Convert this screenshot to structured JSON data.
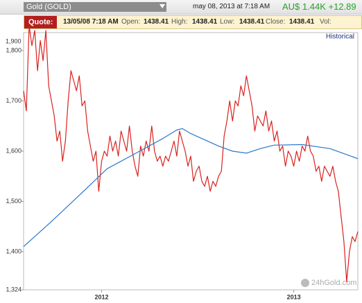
{
  "header": {
    "symbol": "Gold (GOLD)",
    "date": "may 08, 2013 at 7:18 AM",
    "price": "AU$ 1.44K +12.89"
  },
  "quote": {
    "label": "Quote:",
    "time": "13/05/08 7:18 AM",
    "fields": [
      {
        "key": "Open:",
        "value": "1438.41"
      },
      {
        "key": "High:",
        "value": "1438.41"
      },
      {
        "key": "Low:",
        "value": "1438.41"
      },
      {
        "key": "Close:",
        "value": "1438.41"
      },
      {
        "key": "Vol:",
        "value": ""
      }
    ]
  },
  "chart_data": {
    "type": "line",
    "link": "Historical",
    "watermark": "24hGold.com",
    "y_top_label": "1,900",
    "xlim": [
      0,
      120
    ],
    "xticks": [
      {
        "value": 28,
        "label": "2012"
      },
      {
        "value": 97,
        "label": "2013"
      }
    ],
    "ylim": [
      1324,
      1829
    ],
    "yticks": [
      {
        "value": 1324,
        "label": "1,324"
      },
      {
        "value": 1400,
        "label": "1,400"
      },
      {
        "value": 1500,
        "label": "1,500"
      },
      {
        "value": 1600,
        "label": "1,600"
      },
      {
        "value": 1700,
        "label": "1,700"
      },
      {
        "value": 1800,
        "label": "1,800"
      }
    ],
    "series": [
      {
        "color": "#d9211e",
        "values": [
          1720,
          1680,
          1850,
          1810,
          1840,
          1760,
          1820,
          1780,
          1840,
          1730,
          1700,
          1670,
          1620,
          1640,
          1580,
          1620,
          1700,
          1760,
          1740,
          1720,
          1750,
          1690,
          1700,
          1640,
          1610,
          1580,
          1600,
          1520,
          1580,
          1600,
          1590,
          1630,
          1600,
          1620,
          1590,
          1640,
          1620,
          1600,
          1650,
          1600,
          1570,
          1550,
          1610,
          1590,
          1620,
          1600,
          1650,
          1600,
          1580,
          1590,
          1570,
          1590,
          1580,
          1600,
          1620,
          1590,
          1640,
          1620,
          1600,
          1570,
          1590,
          1540,
          1560,
          1570,
          1540,
          1530,
          1550,
          1520,
          1540,
          1530,
          1550,
          1560,
          1630,
          1660,
          1700,
          1660,
          1700,
          1690,
          1730,
          1710,
          1750,
          1720,
          1690,
          1640,
          1670,
          1660,
          1650,
          1680,
          1640,
          1660,
          1620,
          1640,
          1600,
          1610,
          1570,
          1600,
          1590,
          1570,
          1600,
          1580,
          1610,
          1600,
          1630,
          1600,
          1590,
          1560,
          1570,
          1540,
          1570,
          1560,
          1550,
          1570,
          1540,
          1520,
          1470,
          1420,
          1340,
          1400,
          1430,
          1420,
          1440
        ]
      },
      {
        "color": "#2a78c8",
        "x": [
          0,
          10,
          20,
          30,
          40,
          50,
          55,
          57,
          60,
          70,
          75,
          80,
          85,
          90,
          100,
          110,
          115,
          120
        ],
        "values": [
          1410,
          1460,
          1512,
          1565,
          1595,
          1625,
          1642,
          1645,
          1635,
          1610,
          1600,
          1596,
          1605,
          1612,
          1613,
          1605,
          1595,
          1585
        ]
      }
    ]
  }
}
